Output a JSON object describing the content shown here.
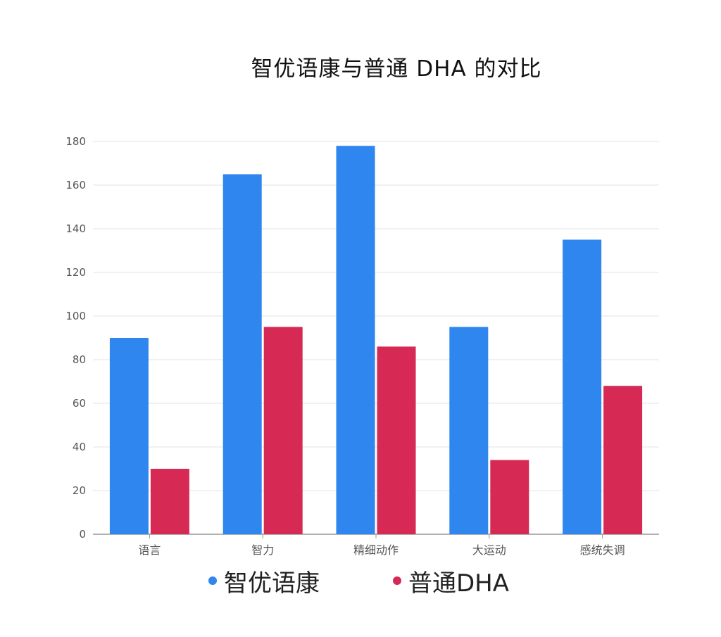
{
  "chart_data": {
    "type": "bar",
    "title": "智优语康与普通 DHA 的对比",
    "xlabel": "",
    "ylabel": "",
    "categories": [
      "语言",
      "智力",
      "精细动作",
      "大运动",
      "感统失调"
    ],
    "series": [
      {
        "name": "智优语康",
        "color": "#2E86EE",
        "values": [
          90,
          165,
          178,
          95,
          135
        ]
      },
      {
        "name": "普通DHA",
        "color": "#D62A55",
        "values": [
          30,
          95,
          86,
          34,
          68
        ]
      }
    ],
    "ylim": [
      0,
      180
    ],
    "yticks": [
      0,
      20,
      40,
      60,
      80,
      100,
      120,
      140,
      160,
      180
    ],
    "grid": true,
    "legend_position": "bottom"
  }
}
